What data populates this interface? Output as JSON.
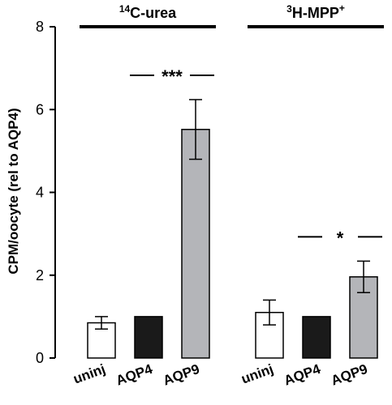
{
  "chart_data": {
    "type": "bar",
    "title": "",
    "ylabel": "CPM/oocyte (rel to AQP4)",
    "xlabel": "",
    "ylim": [
      0,
      8
    ],
    "yticks": [
      0,
      2,
      4,
      6,
      8
    ],
    "grid": false,
    "legend": "none",
    "groups": [
      {
        "label_sup": "14",
        "label_main": "C-urea",
        "label_suffix": "",
        "categories": [
          "uninj",
          "AQP4",
          "AQP9"
        ],
        "values": [
          0.85,
          1.0,
          5.52
        ],
        "errors": [
          0.15,
          0.0,
          0.72
        ],
        "fills": [
          "#ffffff",
          "#1a1a1a",
          "#b4b5b9"
        ],
        "significance": "***"
      },
      {
        "label_sup": "3",
        "label_main": "H-MPP",
        "label_suffix": "+",
        "categories": [
          "uninj",
          "AQP4",
          "AQP9"
        ],
        "values": [
          1.1,
          1.0,
          1.96
        ],
        "errors": [
          0.3,
          0.0,
          0.38
        ],
        "fills": [
          "#ffffff",
          "#1a1a1a",
          "#b4b5b9"
        ],
        "significance": "*"
      }
    ]
  }
}
